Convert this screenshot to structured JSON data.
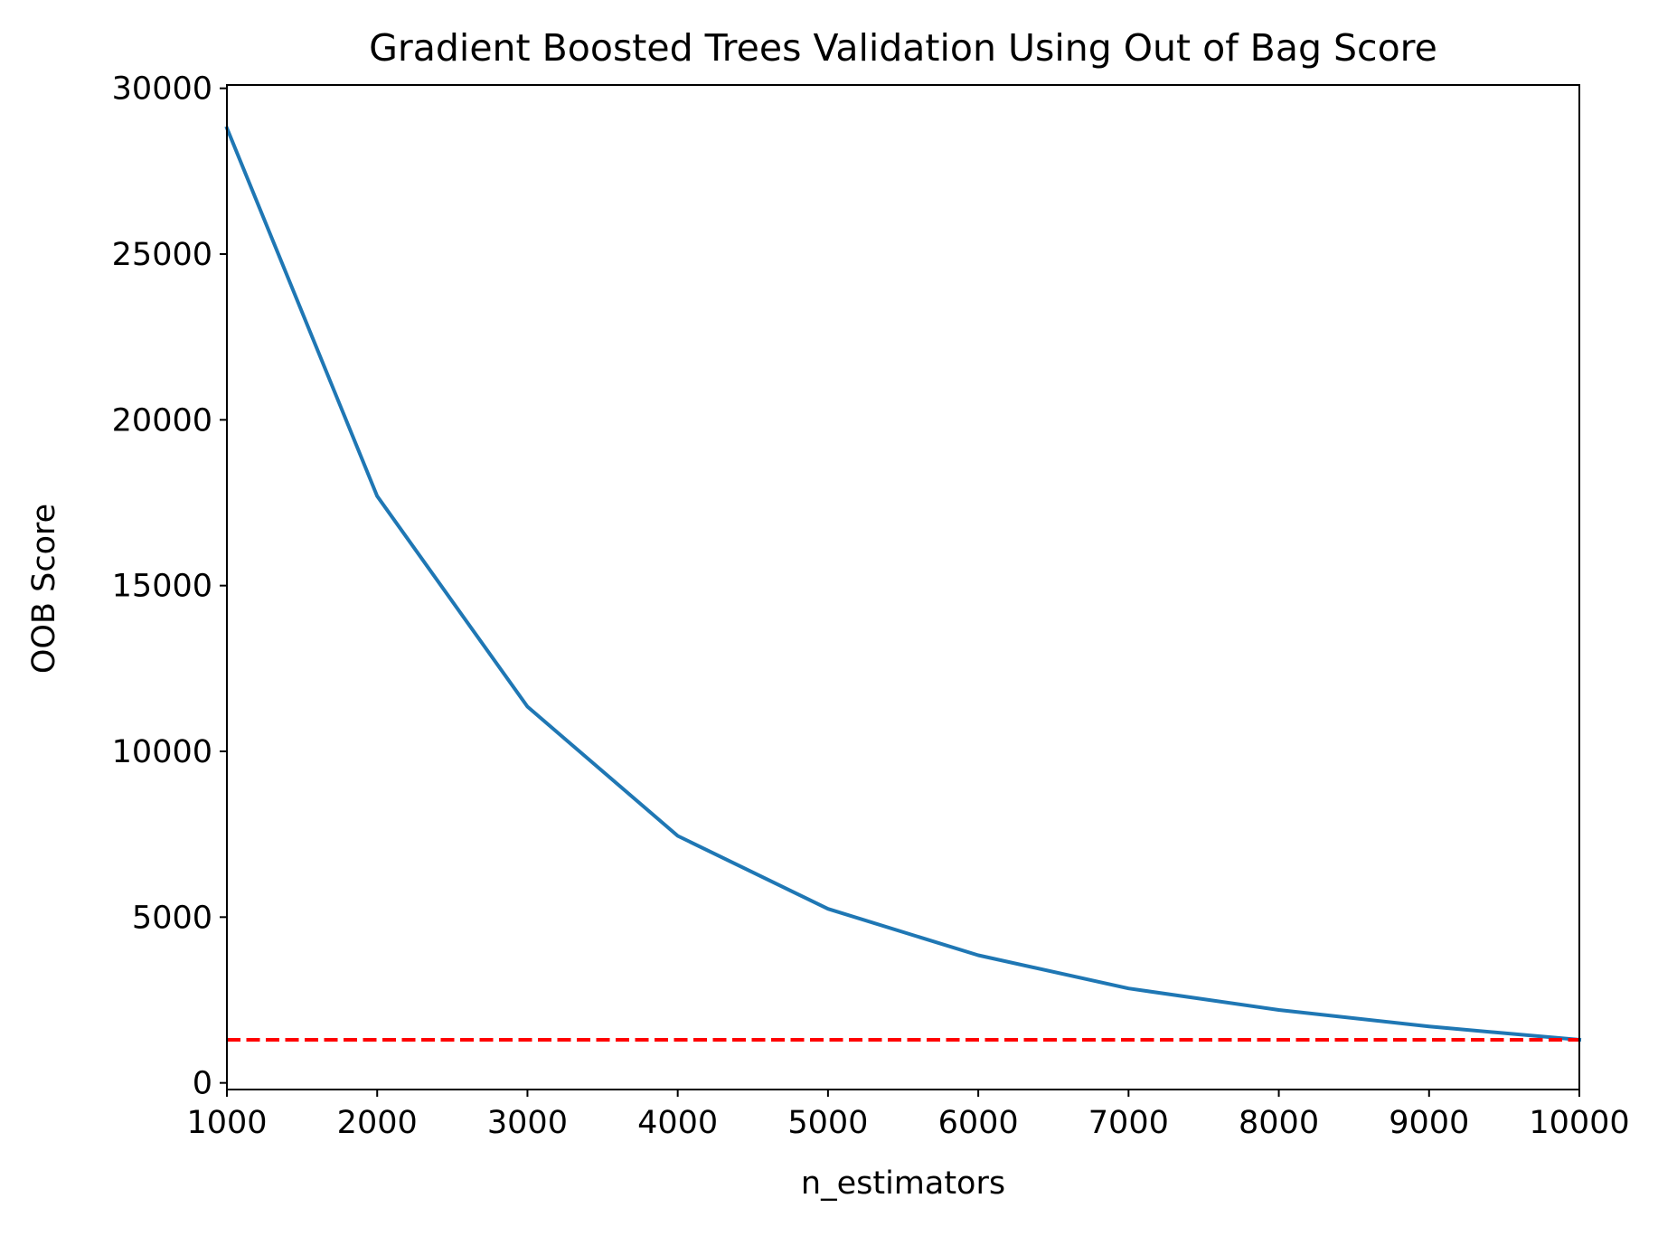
{
  "chart_data": {
    "type": "line",
    "title": "Gradient Boosted Trees Validation Using Out of Bag Score",
    "xlabel": "n_estimators",
    "ylabel": "OOB Score",
    "xlim": [
      1000,
      10000
    ],
    "ylim": [
      -200,
      30100
    ],
    "x_ticks": [
      1000,
      2000,
      3000,
      4000,
      5000,
      6000,
      7000,
      8000,
      9000,
      10000
    ],
    "y_ticks": [
      0,
      5000,
      10000,
      15000,
      20000,
      25000,
      30000
    ],
    "grid": false,
    "legend": "none",
    "series": [
      {
        "color": "#1f77b4",
        "style": "solid",
        "x": [
          1000,
          2000,
          3000,
          4000,
          5000,
          6000,
          7000,
          8000,
          9000,
          10000
        ],
        "y": [
          28800,
          17700,
          11350,
          7450,
          5250,
          3850,
          2850,
          2200,
          1700,
          1300
        ]
      }
    ],
    "reference_lines": [
      {
        "orientation": "horizontal",
        "y": 1300,
        "color": "#ff0000",
        "style": "dashed"
      }
    ]
  }
}
